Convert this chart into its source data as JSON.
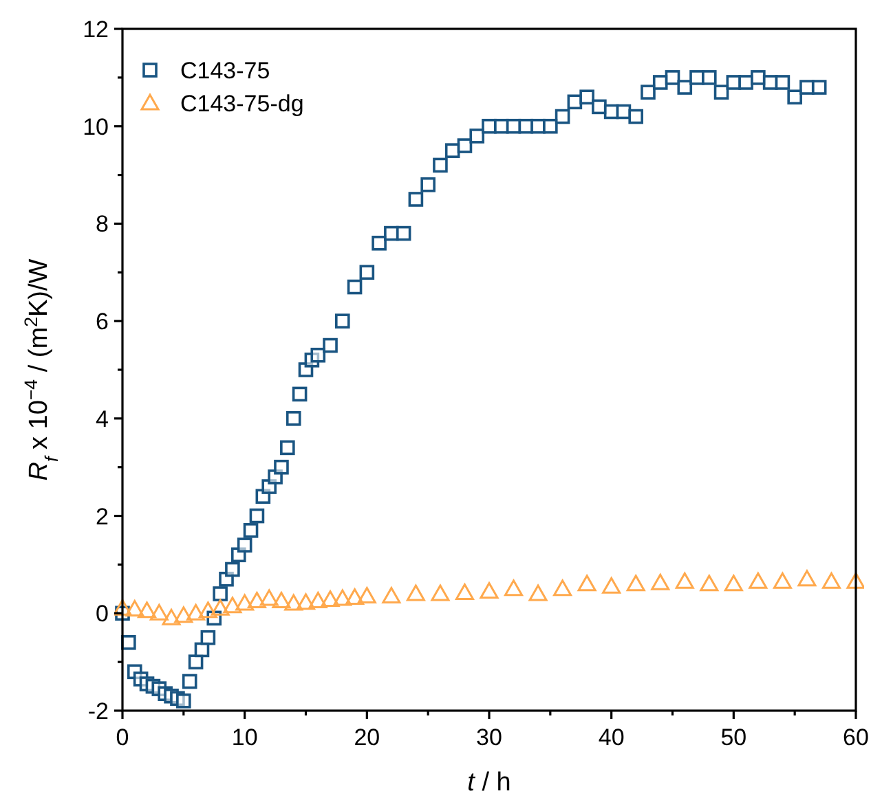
{
  "chart_data": {
    "type": "scatter",
    "xlabel": "t / h",
    "ylabel": "R$_{f}$ x 10$^{−4}$ / (m$^{2}$K)/W",
    "xlim": [
      0,
      60
    ],
    "ylim": [
      -2,
      12
    ],
    "xticks": [
      0,
      10,
      20,
      30,
      40,
      50,
      60
    ],
    "yticks": [
      -2,
      0,
      2,
      4,
      6,
      8,
      10,
      12
    ],
    "legend": "top left",
    "grid": false,
    "series": [
      {
        "name": "C143-75",
        "color": "#1a5582",
        "marker": "square",
        "x": [
          0,
          0.5,
          1,
          1.5,
          2,
          2.5,
          3,
          3.5,
          4,
          4.5,
          5,
          5.5,
          6,
          6.5,
          7,
          7.5,
          8,
          8.5,
          9,
          9.5,
          10,
          10.5,
          11,
          11.5,
          12,
          12.5,
          13,
          13.5,
          14,
          14.5,
          15,
          15.5,
          16,
          17,
          18,
          19,
          20,
          21,
          22,
          23,
          24,
          25,
          26,
          27,
          28,
          29,
          30,
          31,
          32,
          33,
          34,
          35,
          36,
          37,
          38,
          39,
          40,
          41,
          42,
          43,
          44,
          45,
          46,
          47,
          48,
          49,
          50,
          51,
          52,
          53,
          54,
          55,
          56,
          57
        ],
        "values": [
          0,
          -0.6,
          -1.2,
          -1.35,
          -1.45,
          -1.5,
          -1.55,
          -1.65,
          -1.7,
          -1.75,
          -1.8,
          -1.4,
          -1.0,
          -0.75,
          -0.5,
          -0.1,
          0.4,
          0.7,
          0.9,
          1.2,
          1.4,
          1.7,
          2.0,
          2.4,
          2.6,
          2.8,
          3.0,
          3.4,
          4.0,
          4.5,
          5.0,
          5.2,
          5.3,
          5.5,
          6.0,
          6.7,
          7.0,
          7.6,
          7.8,
          7.8,
          8.5,
          8.8,
          9.2,
          9.5,
          9.6,
          9.8,
          10.0,
          10.0,
          10.0,
          10.0,
          10.0,
          10.0,
          10.2,
          10.5,
          10.6,
          10.4,
          10.3,
          10.3,
          10.2,
          10.7,
          10.9,
          11.0,
          10.8,
          11.0,
          11.0,
          10.7,
          10.9,
          10.9,
          11.0,
          10.9,
          10.9,
          10.6,
          10.8,
          10.8
        ]
      },
      {
        "name": "C143-75-dg",
        "color": "#ffa94d",
        "marker": "triangle",
        "x": [
          0,
          1,
          2,
          3,
          4,
          5,
          6,
          7,
          8,
          9,
          10,
          11,
          12,
          13,
          14,
          15,
          16,
          17,
          18,
          19,
          20,
          22,
          24,
          26,
          28,
          30,
          32,
          34,
          36,
          38,
          40,
          42,
          44,
          46,
          48,
          50,
          52,
          54,
          56,
          58,
          60
        ],
        "values": [
          0.1,
          0.08,
          0.05,
          0.0,
          -0.1,
          -0.05,
          0.0,
          0.05,
          0.1,
          0.15,
          0.2,
          0.25,
          0.3,
          0.25,
          0.2,
          0.22,
          0.25,
          0.28,
          0.3,
          0.32,
          0.35,
          0.35,
          0.4,
          0.4,
          0.42,
          0.45,
          0.5,
          0.4,
          0.5,
          0.6,
          0.55,
          0.6,
          0.62,
          0.65,
          0.6,
          0.6,
          0.65,
          0.65,
          0.7,
          0.65,
          0.65
        ]
      }
    ]
  }
}
